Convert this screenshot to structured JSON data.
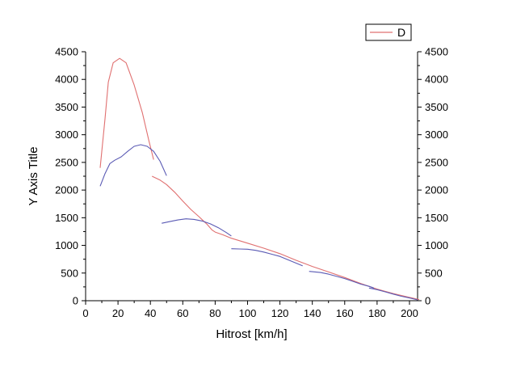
{
  "chart_data": {
    "type": "line",
    "title": "",
    "xlabel": "Hitrost [km/h]",
    "ylabel": "Y Axis Title",
    "xlim": [
      0,
      205
    ],
    "ylim": [
      0,
      4500
    ],
    "x_ticks": [
      0,
      20,
      40,
      60,
      80,
      100,
      120,
      140,
      160,
      180,
      200
    ],
    "y_ticks": [
      0,
      500,
      1000,
      1500,
      2000,
      2500,
      3000,
      3500,
      4000,
      4500
    ],
    "right_axis_mirrored": true,
    "grid": false,
    "legend": {
      "position": "top-right",
      "entries": [
        {
          "label": "D",
          "color": "#e07070"
        }
      ]
    },
    "series": [
      {
        "name": "D",
        "color": "#e07070",
        "segments": [
          [
            [
              9,
              2400
            ],
            [
              12,
              3300
            ],
            [
              14,
              3950
            ],
            [
              17,
              4300
            ],
            [
              21,
              4380
            ],
            [
              25,
              4300
            ],
            [
              30,
              3900
            ],
            [
              35,
              3400
            ],
            [
              39,
              2900
            ],
            [
              42,
              2550
            ]
          ],
          [
            [
              41,
              2250
            ],
            [
              46,
              2180
            ],
            [
              50,
              2100
            ],
            [
              55,
              1960
            ],
            [
              60,
              1800
            ],
            [
              65,
              1650
            ],
            [
              70,
              1520
            ],
            [
              75,
              1380
            ],
            [
              78,
              1280
            ],
            [
              80,
              1240
            ],
            [
              85,
              1190
            ],
            [
              90,
              1130
            ],
            [
              100,
              1040
            ],
            [
              110,
              950
            ],
            [
              120,
              850
            ],
            [
              130,
              730
            ],
            [
              140,
              620
            ],
            [
              150,
              520
            ],
            [
              160,
              420
            ],
            [
              170,
              310
            ],
            [
              180,
              210
            ],
            [
              190,
              130
            ],
            [
              200,
              60
            ],
            [
              206,
              20
            ]
          ]
        ]
      },
      {
        "color": "#5a5ab4",
        "segments": [
          [
            [
              9,
              2070
            ],
            [
              12,
              2300
            ],
            [
              15,
              2480
            ],
            [
              18,
              2540
            ],
            [
              22,
              2600
            ],
            [
              26,
              2700
            ],
            [
              30,
              2790
            ],
            [
              34,
              2820
            ],
            [
              38,
              2790
            ],
            [
              42,
              2700
            ],
            [
              46,
              2520
            ],
            [
              50,
              2260
            ]
          ],
          [
            [
              47,
              1400
            ],
            [
              52,
              1430
            ],
            [
              57,
              1460
            ],
            [
              62,
              1480
            ],
            [
              67,
              1470
            ],
            [
              72,
              1440
            ],
            [
              77,
              1390
            ],
            [
              82,
              1320
            ],
            [
              87,
              1230
            ],
            [
              90,
              1170
            ]
          ],
          [
            [
              90,
              940
            ],
            [
              95,
              935
            ],
            [
              100,
              930
            ],
            [
              105,
              910
            ],
            [
              110,
              880
            ],
            [
              115,
              840
            ],
            [
              120,
              800
            ],
            [
              125,
              740
            ],
            [
              130,
              680
            ],
            [
              134,
              630
            ]
          ],
          [
            [
              138,
              530
            ],
            [
              145,
              510
            ],
            [
              150,
              480
            ],
            [
              155,
              440
            ],
            [
              160,
              400
            ],
            [
              165,
              350
            ],
            [
              170,
              300
            ],
            [
              175,
              260
            ],
            [
              178,
              230
            ]
          ],
          [
            [
              175,
              230
            ],
            [
              180,
              200
            ],
            [
              185,
              160
            ],
            [
              190,
              120
            ],
            [
              195,
              80
            ],
            [
              200,
              50
            ],
            [
              205,
              15
            ]
          ]
        ]
      }
    ]
  }
}
